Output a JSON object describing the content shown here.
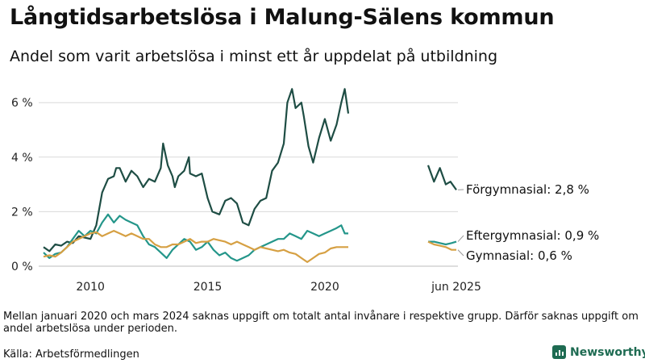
{
  "title": "Långtidsarbetslösa i Malung-Sälens kommun",
  "subtitle": "Andel som varit arbetslösa i minst ett år uppdelat på utbildning",
  "note": "Mellan januari 2020 och mars 2024 saknas uppgift om totalt antal invånare i respektive grupp. Därför saknas uppgift om andel arbetslösa under perioden.",
  "source": "Källa: Arbetsförmedlingen",
  "brand": "Newsworthy",
  "colors": {
    "forgymnasial": "#1e4d44",
    "eftergymnasial": "#24968a",
    "gymnasial": "#d6a043",
    "grid": "#d9d9d9"
  },
  "chart_data": {
    "type": "line",
    "y_ticks": [
      "0 %",
      "2 %",
      "4 %",
      "6 %"
    ],
    "y_tick_values": [
      0,
      2,
      4,
      6
    ],
    "ylim": [
      0,
      6.6
    ],
    "x_ticks": [
      {
        "label": "2010",
        "x": 2010
      },
      {
        "label": "2015",
        "x": 2015
      },
      {
        "label": "2020",
        "x": 2020
      },
      {
        "label": "jun 2025",
        "x": 2025.45
      }
    ],
    "x_axis_break": "efter 2021",
    "series": [
      {
        "name": "Förgymnasial",
        "color_key": "forgymnasial",
        "end_label": "Förgymnasial: 2,8 %",
        "points": [
          [
            2008.0,
            0.7
          ],
          [
            2008.25,
            0.55
          ],
          [
            2008.5,
            0.8
          ],
          [
            2008.75,
            0.75
          ],
          [
            2009.0,
            0.9
          ],
          [
            2009.25,
            0.85
          ],
          [
            2009.5,
            1.1
          ],
          [
            2009.75,
            1.05
          ],
          [
            2010.0,
            1.0
          ],
          [
            2010.25,
            1.5
          ],
          [
            2010.5,
            2.7
          ],
          [
            2010.75,
            3.2
          ],
          [
            2011.0,
            3.3
          ],
          [
            2011.1,
            3.6
          ],
          [
            2011.25,
            3.6
          ],
          [
            2011.5,
            3.1
          ],
          [
            2011.75,
            3.5
          ],
          [
            2012.0,
            3.3
          ],
          [
            2012.25,
            2.9
          ],
          [
            2012.5,
            3.2
          ],
          [
            2012.75,
            3.1
          ],
          [
            2013.0,
            3.6
          ],
          [
            2013.1,
            4.5
          ],
          [
            2013.3,
            3.7
          ],
          [
            2013.5,
            3.3
          ],
          [
            2013.6,
            2.9
          ],
          [
            2013.75,
            3.3
          ],
          [
            2014.0,
            3.5
          ],
          [
            2014.2,
            4.0
          ],
          [
            2014.25,
            3.4
          ],
          [
            2014.5,
            3.3
          ],
          [
            2014.75,
            3.4
          ],
          [
            2015.0,
            2.5
          ],
          [
            2015.2,
            2.0
          ],
          [
            2015.5,
            1.9
          ],
          [
            2015.75,
            2.4
          ],
          [
            2016.0,
            2.5
          ],
          [
            2016.25,
            2.3
          ],
          [
            2016.5,
            1.6
          ],
          [
            2016.75,
            1.5
          ],
          [
            2017.0,
            2.1
          ],
          [
            2017.25,
            2.4
          ],
          [
            2017.5,
            2.5
          ],
          [
            2017.75,
            3.5
          ],
          [
            2018.0,
            3.8
          ],
          [
            2018.25,
            4.5
          ],
          [
            2018.4,
            6.0
          ],
          [
            2018.6,
            6.5
          ],
          [
            2018.75,
            5.8
          ],
          [
            2019.0,
            6.0
          ],
          [
            2019.1,
            5.5
          ],
          [
            2019.3,
            4.4
          ],
          [
            2019.5,
            3.8
          ],
          [
            2019.75,
            4.7
          ],
          [
            2020.0,
            5.4
          ],
          [
            2020.25,
            4.6
          ],
          [
            2020.5,
            5.2
          ],
          [
            2020.7,
            6.0
          ],
          [
            2020.85,
            6.5
          ],
          [
            2021.0,
            5.6
          ]
        ],
        "points_after_break": [
          [
            2024.25,
            3.7
          ],
          [
            2024.5,
            3.1
          ],
          [
            2024.75,
            3.6
          ],
          [
            2025.0,
            3.0
          ],
          [
            2025.2,
            3.1
          ],
          [
            2025.45,
            2.8
          ]
        ]
      },
      {
        "name": "Eftergymnasial",
        "color_key": "eftergymnasial",
        "end_label": "Eftergymnasial: 0,9 %",
        "points": [
          [
            2008.0,
            0.5
          ],
          [
            2008.25,
            0.3
          ],
          [
            2008.5,
            0.45
          ],
          [
            2008.75,
            0.5
          ],
          [
            2009.0,
            0.7
          ],
          [
            2009.25,
            1.0
          ],
          [
            2009.5,
            1.3
          ],
          [
            2009.75,
            1.1
          ],
          [
            2010.0,
            1.3
          ],
          [
            2010.25,
            1.2
          ],
          [
            2010.5,
            1.6
          ],
          [
            2010.75,
            1.9
          ],
          [
            2011.0,
            1.6
          ],
          [
            2011.25,
            1.85
          ],
          [
            2011.5,
            1.7
          ],
          [
            2011.75,
            1.6
          ],
          [
            2012.0,
            1.5
          ],
          [
            2012.25,
            1.1
          ],
          [
            2012.5,
            0.8
          ],
          [
            2012.75,
            0.7
          ],
          [
            2013.0,
            0.5
          ],
          [
            2013.25,
            0.3
          ],
          [
            2013.5,
            0.6
          ],
          [
            2013.75,
            0.8
          ],
          [
            2014.0,
            1.0
          ],
          [
            2014.25,
            0.9
          ],
          [
            2014.5,
            0.6
          ],
          [
            2014.75,
            0.7
          ],
          [
            2015.0,
            0.9
          ],
          [
            2015.25,
            0.6
          ],
          [
            2015.5,
            0.4
          ],
          [
            2015.75,
            0.5
          ],
          [
            2016.0,
            0.3
          ],
          [
            2016.25,
            0.2
          ],
          [
            2016.5,
            0.3
          ],
          [
            2016.75,
            0.4
          ],
          [
            2017.0,
            0.6
          ],
          [
            2017.25,
            0.7
          ],
          [
            2017.5,
            0.8
          ],
          [
            2017.75,
            0.9
          ],
          [
            2018.0,
            1.0
          ],
          [
            2018.25,
            1.0
          ],
          [
            2018.5,
            1.2
          ],
          [
            2018.75,
            1.1
          ],
          [
            2019.0,
            1.0
          ],
          [
            2019.25,
            1.3
          ],
          [
            2019.5,
            1.2
          ],
          [
            2019.75,
            1.1
          ],
          [
            2020.0,
            1.2
          ],
          [
            2020.25,
            1.3
          ],
          [
            2020.5,
            1.4
          ],
          [
            2020.7,
            1.5
          ],
          [
            2020.85,
            1.2
          ],
          [
            2021.0,
            1.2
          ]
        ],
        "points_after_break": [
          [
            2024.25,
            0.9
          ],
          [
            2024.5,
            0.9
          ],
          [
            2024.75,
            0.85
          ],
          [
            2025.0,
            0.8
          ],
          [
            2025.25,
            0.85
          ],
          [
            2025.45,
            0.9
          ]
        ]
      },
      {
        "name": "Gymnasial",
        "color_key": "gymnasial",
        "end_label": "Gymnasial: 0,6 %",
        "points": [
          [
            2008.0,
            0.35
          ],
          [
            2008.25,
            0.4
          ],
          [
            2008.5,
            0.35
          ],
          [
            2008.75,
            0.5
          ],
          [
            2009.0,
            0.7
          ],
          [
            2009.25,
            0.9
          ],
          [
            2009.5,
            1.0
          ],
          [
            2009.75,
            1.1
          ],
          [
            2010.0,
            1.2
          ],
          [
            2010.25,
            1.25
          ],
          [
            2010.5,
            1.1
          ],
          [
            2010.75,
            1.2
          ],
          [
            2011.0,
            1.3
          ],
          [
            2011.25,
            1.2
          ],
          [
            2011.5,
            1.1
          ],
          [
            2011.75,
            1.2
          ],
          [
            2012.0,
            1.1
          ],
          [
            2012.25,
            1.0
          ],
          [
            2012.5,
            1.0
          ],
          [
            2012.75,
            0.8
          ],
          [
            2013.0,
            0.7
          ],
          [
            2013.25,
            0.7
          ],
          [
            2013.5,
            0.8
          ],
          [
            2013.75,
            0.8
          ],
          [
            2014.0,
            0.9
          ],
          [
            2014.25,
            1.0
          ],
          [
            2014.5,
            0.85
          ],
          [
            2014.75,
            0.9
          ],
          [
            2015.0,
            0.9
          ],
          [
            2015.25,
            1.0
          ],
          [
            2015.5,
            0.95
          ],
          [
            2015.75,
            0.9
          ],
          [
            2016.0,
            0.8
          ],
          [
            2016.25,
            0.9
          ],
          [
            2016.5,
            0.8
          ],
          [
            2016.75,
            0.7
          ],
          [
            2017.0,
            0.6
          ],
          [
            2017.25,
            0.7
          ],
          [
            2017.5,
            0.65
          ],
          [
            2017.75,
            0.6
          ],
          [
            2018.0,
            0.55
          ],
          [
            2018.25,
            0.6
          ],
          [
            2018.5,
            0.5
          ],
          [
            2018.75,
            0.45
          ],
          [
            2019.0,
            0.3
          ],
          [
            2019.25,
            0.15
          ],
          [
            2019.5,
            0.3
          ],
          [
            2019.75,
            0.45
          ],
          [
            2020.0,
            0.5
          ],
          [
            2020.25,
            0.65
          ],
          [
            2020.5,
            0.7
          ],
          [
            2020.75,
            0.7
          ],
          [
            2021.0,
            0.7
          ]
        ],
        "points_after_break": [
          [
            2024.25,
            0.9
          ],
          [
            2024.5,
            0.8
          ],
          [
            2024.75,
            0.75
          ],
          [
            2025.0,
            0.7
          ],
          [
            2025.25,
            0.6
          ],
          [
            2025.45,
            0.6
          ]
        ]
      }
    ]
  }
}
